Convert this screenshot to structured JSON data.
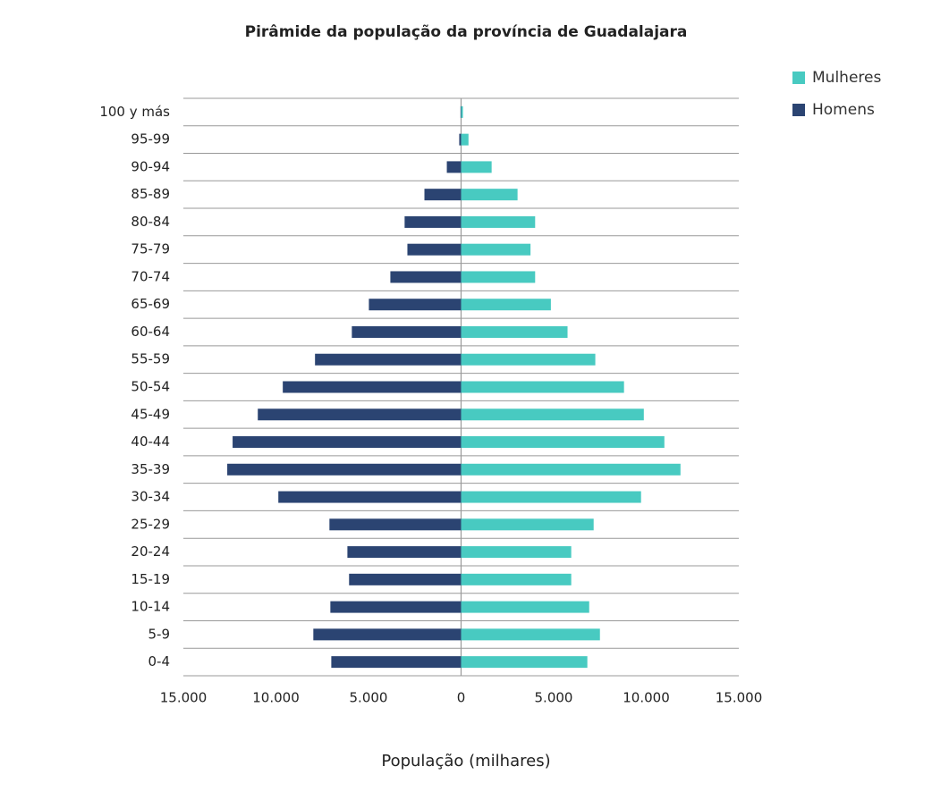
{
  "chart_data": {
    "type": "bar",
    "orientation": "horizontal",
    "title": "Pirâmide da população da província de Guadalajara",
    "x_label": "População (milhares)",
    "categories": [
      "100 y más",
      "95-99",
      "90-94",
      "85-89",
      "80-84",
      "75-79",
      "70-74",
      "65-69",
      "60-64",
      "55-59",
      "50-54",
      "45-49",
      "40-44",
      "35-39",
      "30-34",
      "25-29",
      "20-24",
      "15-19",
      "10-14",
      "5-9",
      "0-4"
    ],
    "series": [
      {
        "name": "Mulheres",
        "color": "#48cac1",
        "values": [
          100,
          400,
          1650,
          3050,
          4000,
          3750,
          4000,
          4850,
          5750,
          7250,
          8800,
          9870,
          10980,
          11850,
          9720,
          7160,
          5950,
          5950,
          6920,
          7500,
          6820
        ]
      },
      {
        "name": "Homens",
        "color": "#2b4472",
        "values": [
          -30,
          -100,
          -770,
          -1980,
          -3050,
          -2900,
          -3820,
          -4980,
          -5900,
          -7890,
          -9630,
          -10980,
          -12340,
          -12630,
          -9870,
          -7110,
          -6140,
          -6050,
          -7060,
          -7980,
          -7010
        ]
      }
    ],
    "xlim": [
      -15000,
      15000
    ],
    "xticks": [
      {
        "value": -15000,
        "label": "15.000"
      },
      {
        "value": -10000,
        "label": "10.000"
      },
      {
        "value": -5000,
        "label": "5.000"
      },
      0,
      {
        "value": 5000,
        "label": "5.000"
      },
      {
        "value": 10000,
        "label": "10.000"
      },
      {
        "value": 15000,
        "label": "15.000"
      }
    ],
    "legend": "top-right"
  }
}
